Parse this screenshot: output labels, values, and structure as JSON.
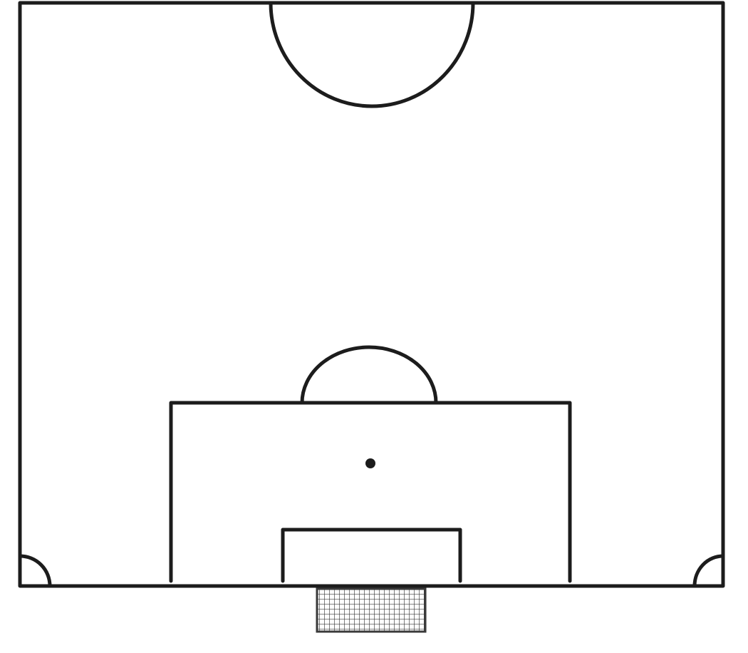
{
  "diagram": {
    "subject": "half-soccer-pitch",
    "style": "hand-drawn-pencil",
    "colors": {
      "background": "#ffffff",
      "line": "#1c1c1c",
      "net": "#3a3a3a"
    }
  }
}
